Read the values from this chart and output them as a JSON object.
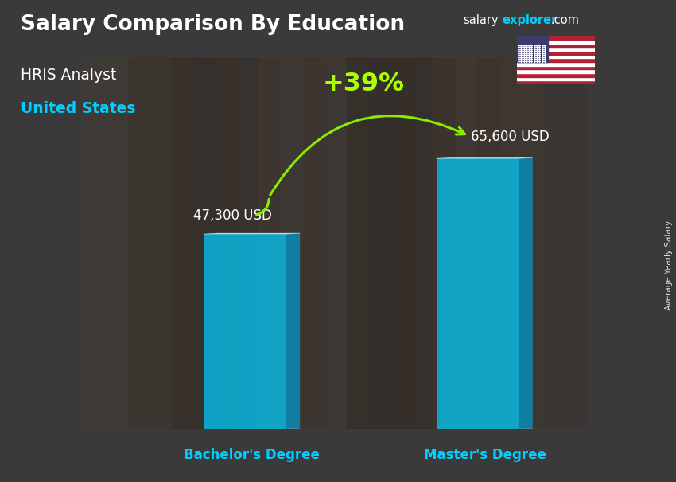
{
  "title": "Salary Comparison By Education",
  "subtitle_job": "HRIS Analyst",
  "subtitle_loc": "United States",
  "ylabel": "Average Yearly Salary",
  "categories": [
    "Bachelor's Degree",
    "Master's Degree"
  ],
  "values": [
    47300,
    65600
  ],
  "value_labels": [
    "47,300 USD",
    "65,600 USD"
  ],
  "pct_change": "+39%",
  "bar_color_face": "#00CFFF",
  "bar_color_side": "#0099CC",
  "bar_color_top": "#99EEFF",
  "bar_alpha": 0.72,
  "bar_width": 0.28,
  "bar_depth": 0.05,
  "ylim": [
    0,
    90000
  ],
  "xlim": [
    -0.3,
    1.5
  ],
  "bg_color": "#3a3a3a",
  "title_color": "#ffffff",
  "subtitle_job_color": "#ffffff",
  "subtitle_loc_color": "#00CFFF",
  "label_color": "#ffffff",
  "xticklabel_color": "#00CFFF",
  "pct_color": "#AAFF00",
  "arrow_color": "#88EE00",
  "watermark_salary_color": "#ffffff",
  "watermark_explorer_color": "#00CFFF",
  "watermark_dot_color": "#ffffff",
  "right_label_color": "#ffffff",
  "positions": [
    0.25,
    1.05
  ]
}
